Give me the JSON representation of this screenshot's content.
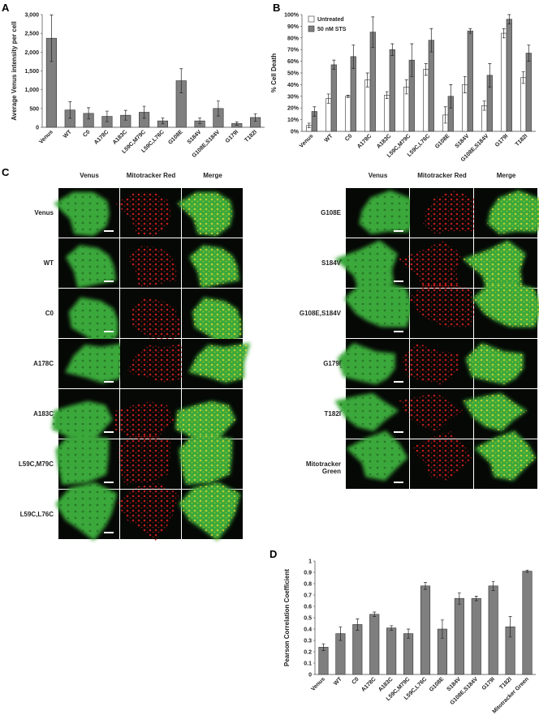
{
  "chart_data": [
    {
      "type": "bar",
      "panel_label": "A",
      "y_label": "Average Venus intensity per cell",
      "color": "#7f7f7f",
      "grid": false,
      "categories": [
        "Venus",
        "WT",
        "C0",
        "A178C",
        "A183C",
        "L59C,M79C",
        "L59C,L76C",
        "G108E",
        "S184V",
        "G108E,S184V",
        "G179I",
        "T182I"
      ],
      "values": [
        2370,
        460,
        370,
        290,
        320,
        400,
        170,
        1240,
        170,
        500,
        100,
        260
      ],
      "errors": [
        620,
        220,
        150,
        140,
        130,
        160,
        80,
        320,
        80,
        200,
        40,
        100
      ],
      "ylim": [
        0,
        3000
      ],
      "yticks": [
        0,
        500,
        {
          "value": 1000,
          "label": "1,000"
        },
        {
          "value": 1500,
          "label": "1,500"
        },
        {
          "value": 2000,
          "label": "2,000"
        },
        {
          "value": 2500,
          "label": "2,500"
        },
        {
          "value": 3000,
          "label": "3,000"
        }
      ]
    },
    {
      "type": "bar",
      "panel_label": "B",
      "y_label": "% Cell Death",
      "grid": false,
      "legend": "top-left",
      "categories": [
        "Venus",
        "WT",
        "C0",
        "A178C",
        "A183C",
        "L59C,M79C",
        "L59C,L76C",
        "G108E",
        "S184V",
        "G108E,S184V",
        "G179I",
        "T182I"
      ],
      "series": [
        {
          "name": "Untreated",
          "color": "#ffffff",
          "values": [
            5,
            28,
            30,
            44,
            31,
            38,
            53,
            14,
            40,
            22,
            84,
            46
          ],
          "errors": [
            2,
            4,
            1,
            6,
            3,
            6,
            5,
            7,
            7,
            4,
            4,
            5
          ]
        },
        {
          "name": "50 nM STS",
          "color": "#7f7f7f",
          "values": [
            17,
            57,
            64,
            85,
            70,
            61,
            78,
            30,
            86,
            48,
            96,
            67
          ],
          "errors": [
            4,
            4,
            10,
            13,
            5,
            14,
            10,
            10,
            2,
            10,
            4,
            7
          ]
        }
      ],
      "ylim": [
        0,
        100
      ],
      "yticks": [
        {
          "value": 0,
          "label": "0%"
        },
        {
          "value": 10,
          "label": "10%"
        },
        {
          "value": 20,
          "label": "20%"
        },
        {
          "value": 30,
          "label": "30%"
        },
        {
          "value": 40,
          "label": "40%"
        },
        {
          "value": 50,
          "label": "50%"
        },
        {
          "value": 60,
          "label": "60%"
        },
        {
          "value": 70,
          "label": "70%"
        },
        {
          "value": 80,
          "label": "80%"
        },
        {
          "value": 90,
          "label": "90%"
        },
        {
          "value": 100,
          "label": "100%"
        }
      ]
    },
    {
      "type": "bar",
      "panel_label": "D",
      "y_label": "Pearson Correlation Coefficient",
      "color": "#7f7f7f",
      "grid": false,
      "categories": [
        "Venus",
        "WT",
        "C0",
        "A178C",
        "A183C",
        "L59C,M79C",
        "L59C,L76C",
        "G108E",
        "S184V",
        "G108E,S184V",
        "G179I",
        "T182I",
        "Mitotracker Green"
      ],
      "values": [
        0.24,
        0.36,
        0.44,
        0.53,
        0.41,
        0.36,
        0.78,
        0.4,
        0.67,
        0.67,
        0.78,
        0.42,
        0.91
      ],
      "errors": [
        0.03,
        0.06,
        0.05,
        0.02,
        0.02,
        0.04,
        0.03,
        0.08,
        0.05,
        0.02,
        0.04,
        0.09,
        0.01
      ],
      "ylim": [
        0,
        1
      ],
      "yticks": [
        0,
        0.1,
        0.2,
        0.3,
        0.4,
        0.5,
        0.6,
        0.7,
        0.8,
        0.9,
        1
      ]
    }
  ],
  "panel_c": {
    "panel_label": "C",
    "columns": [
      "Venus",
      "Mitotracker Red",
      "Merge"
    ],
    "left_rows": [
      "Venus",
      "WT",
      "C0",
      "A178C",
      "A183C",
      "L59C,M79C",
      "L59C,L76C"
    ],
    "right_rows": [
      "G108E",
      "S184V",
      "G108E,S184V",
      "G179I",
      "T182I",
      "Mitotracker Green"
    ]
  }
}
